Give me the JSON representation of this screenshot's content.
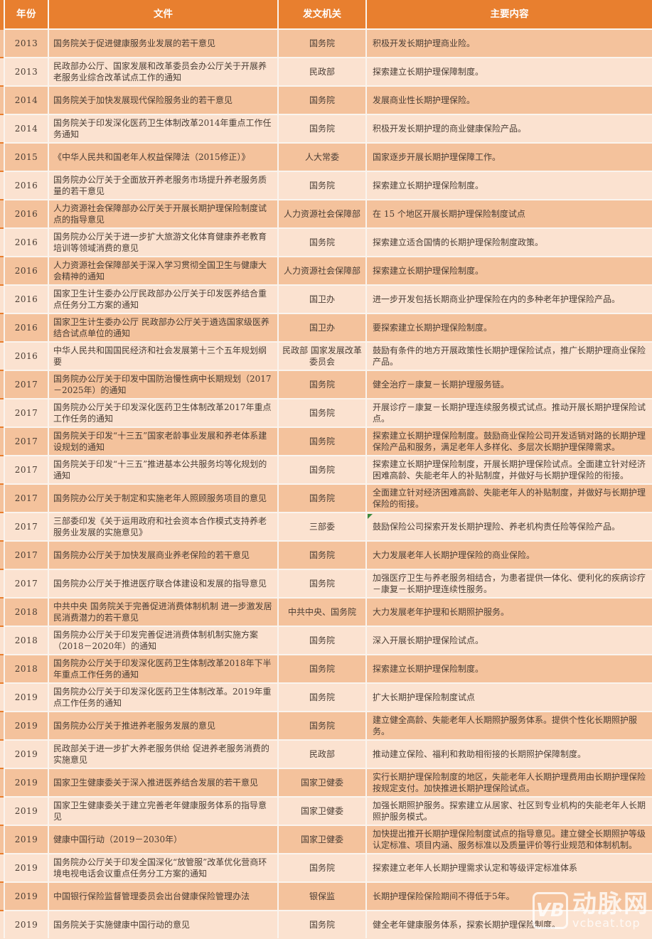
{
  "colors": {
    "header_bg": "#e87f2f",
    "row_dark_bg": "#f4c29c",
    "row_light_bg": "#fbe2d0",
    "separator": "#faf4ee",
    "text": "#4a3d34",
    "header_text": "#ffffff",
    "corner_marker_green": "#3b8a3e"
  },
  "watermark": {
    "logo": "VB",
    "name": "动脉网",
    "url": "vcbeat.top"
  },
  "table": {
    "columns": [
      {
        "key": "year",
        "label": "年份"
      },
      {
        "key": "file",
        "label": "文件"
      },
      {
        "key": "agency",
        "label": "发文机关"
      },
      {
        "key": "content",
        "label": "主要内容"
      }
    ],
    "rows": [
      {
        "year": "2013",
        "file": "国务院关于促进健康服务业发展的若干意见",
        "agency": "国务院",
        "content": "积极开发长期护理商业险。"
      },
      {
        "year": "2013",
        "file": "民政部办公厅、国家发展和改革委员会办公厅关于开展养老服务业综合改革试点工作的通知",
        "agency": "民政部",
        "content": "探索建立长期护理保障制度。"
      },
      {
        "year": "2014",
        "file": "国务院关于加快发展现代保险服务业的若干意见",
        "agency": "国务院",
        "content": "发展商业性长期护理保险。"
      },
      {
        "year": "2014",
        "file": "国务院关于印发深化医药卫生体制改革2014年重点工作任务通知",
        "agency": "国务院",
        "content": "积极开发长期护理的商业健康保险产品。"
      },
      {
        "year": "2015",
        "file": "《中华人民共和国老年人权益保障法（2015修正）》",
        "agency": "人大常委",
        "content": "国家逐步开展长期护理保障工作。"
      },
      {
        "year": "2016",
        "file": "国务院办公厅关于全面放开养老服务市场提升养老服务质量的若干意见",
        "agency": "国务院",
        "content": "探索建立长期护理保险制度。"
      },
      {
        "year": "2016",
        "file": "人力资源社会保障部办公厅关于开展长期护理保险制度试点的指导意见",
        "agency": "人力资源社会保障部",
        "content": "在 15 个地区开展长期护理保险制度试点"
      },
      {
        "year": "2016",
        "file": "国务院办公厅关于进一步扩大旅游文化体育健康养老教育培训等领域消费的意见",
        "agency": "国务院",
        "content": "探索建立适合国情的长期护理保险制度政策。"
      },
      {
        "year": "2016",
        "file": "人力资源社会保障部关于深入学习贯彻全国卫生与健康大会精神的通知",
        "agency": "人力资源社会保障部",
        "content": "探索建立长期护理保险制度。"
      },
      {
        "year": "2016",
        "file": "国家卫生计生委办公厅民政部办公厅关于印发医养结合重点任务分工方案的通知",
        "agency": "国卫办",
        "content": "进一步开发包括长期商业护理保险在内的多种老年护理保险产品。"
      },
      {
        "year": "2016",
        "file": "国家卫生计生委办公厅 民政部办公厅关于遴选国家级医养结合试点单位的通知",
        "agency": "国卫办",
        "content": "要探索建立长期护理保险制度。"
      },
      {
        "year": "2016",
        "file": "中华人民共和国国民经济和社会发展第十三个五年规划纲要",
        "agency": "民政部 国家发展改革委员会",
        "content": "鼓励有条件的地方开展政策性长期护理保险试点，推广长期护理商业保险产品。"
      },
      {
        "year": "2017",
        "file": "国务院办公厅关于印发中国防治慢性病中长期规划（2017－2025年）的通知",
        "agency": "国务院",
        "content": "健全治疗－康复－长期护理服务链。"
      },
      {
        "year": "2017",
        "file": "国务院办公厅关于印发深化医药卫生体制改革2017年重点工作任务的通知",
        "agency": "国务院",
        "content": "开展诊疗－康复－长期护理连续服务模式试点。推动开展长期护理保险试点。"
      },
      {
        "year": "2017",
        "file": "国务院关于印发“十三五”国家老龄事业发展和养老体系建设规划的通知",
        "agency": "国务院",
        "content": "探索建立长期护理保险制度。鼓励商业保险公司开发适销对路的长期护理保险产品和服务，满足老年人多样化、多层次长期护理保障需求。"
      },
      {
        "year": "2017",
        "file": "国务院关于印发“十三五”推进基本公共服务均等化规划的通知",
        "agency": "国务院",
        "content": "探索建立长期护理保险制度，开展长期护理保险试点。全面建立针对经济困难高龄、失能老年人的补贴制度，并做好与长期护理保险的衔接。"
      },
      {
        "year": "2017",
        "file": "国务院办公厅关于制定和实施老年人照顾服务项目的意见",
        "agency": "国务院",
        "content": "全面建立针对经济困难高龄、失能老年人的补贴制度，并做好与长期护理保险的衔接。"
      },
      {
        "year": "2017",
        "file": "三部委印发《关于运用政府和社会资本合作模式支持养老服务业发展的实施意见》",
        "agency": "三部委",
        "content": "鼓励保险公司探索开发长期护理险、养老机构责任险等保险产品。"
      },
      {
        "year": "2017",
        "file": "国务院办公厅关于加快发展商业养老保险的若干意见",
        "agency": "国务院",
        "content": "大力发展老年人长期护理保险的商业保险。"
      },
      {
        "year": "2017",
        "file": "国务院办公厅关于推进医疗联合体建设和发展的指导意见",
        "agency": "国务院",
        "content": "加强医疗卫生与养老服务相结合，为患者提供一体化、便利化的疾病诊疗－康复－长期护理连续性服务。"
      },
      {
        "year": "2018",
        "file": "中共中央 国务院关于完善促进消费体制机制  进一步激发居民消费潜力的若干意见",
        "agency": "中共中央、国务院",
        "content": "大力发展老年护理和长期照护服务。"
      },
      {
        "year": "2018",
        "file": "国务院办公厅关于印发完善促进消费体制机制实施方案（2018－2020年）的通知",
        "agency": "国务院",
        "content": "深入开展长期护理保险试点。"
      },
      {
        "year": "2018",
        "file": "国务院办公厅关于印发深化医药卫生体制改革2018年下半年重点工作任务的通知",
        "agency": "国务院",
        "content": "探索建立长期护理保险制度。"
      },
      {
        "year": "2019",
        "file": "国务院办公厅关于印发深化医药卫生体制改革。2019年重点工作任务的通知",
        "agency": "国务院",
        "content": "扩大长期护理保险制度试点"
      },
      {
        "year": "2019",
        "file": "国务院办公厅关于推进养老服务发展的意见",
        "agency": "国务院",
        "content": "建立健全高龄、失能老年人长期照护服务体系。提供个性化长期照护服务。"
      },
      {
        "year": "2019",
        "file": "民政部关于进一步扩大养老服务供给 促进养老服务消费的实施意见",
        "agency": "民政部",
        "content": "推动建立保险、福利和救助相衔接的长期照护保障制度。"
      },
      {
        "year": "2019",
        "file": "国家卫生健康委关于深入推进医养结合发展的若干意见",
        "agency": "国家卫健委",
        "content": "实行长期护理保险制度的地区，失能老年人长期护理费用由长期护理保险按规定支付。加快推进长期护理保险试点。"
      },
      {
        "year": "2019",
        "file": "国家卫生健康委关于建立完善老年健康服务体系的指导意见",
        "agency": "国家卫健委",
        "content": "加强长期照护服务。探索建立从居家、社区到专业机构的失能老年人长期照护服务模式。"
      },
      {
        "year": "2019",
        "file": "健康中国行动（2019－2030年）",
        "agency": "国家卫健委",
        "content": "加快提出推开长期护理保险制度试点的指导意见。建立健全长期照护等级认定标准、项目内涵、服务标准以及质量评价等行业规范和体制机制。"
      },
      {
        "year": "2019",
        "file": "国务院办公厅关于印发全国深化“放管服”改革优化营商环境电视电话会议重点任务分工方案的通知",
        "agency": "国务院",
        "content": "探索建立老年人长期护理需求认定和等级评定标准体系"
      },
      {
        "year": "2019",
        "file": "中国银行保险监督管理委员会出台健康保险管理办法",
        "agency": "银保监",
        "content": "长期护理保险保险期间不得低于5年。"
      },
      {
        "year": "2019",
        "file": "国务院关于实施健康中国行动的意见",
        "agency": "国务院",
        "content": "健全老年健康服务体系，探索长期护理保险制度。"
      }
    ]
  }
}
